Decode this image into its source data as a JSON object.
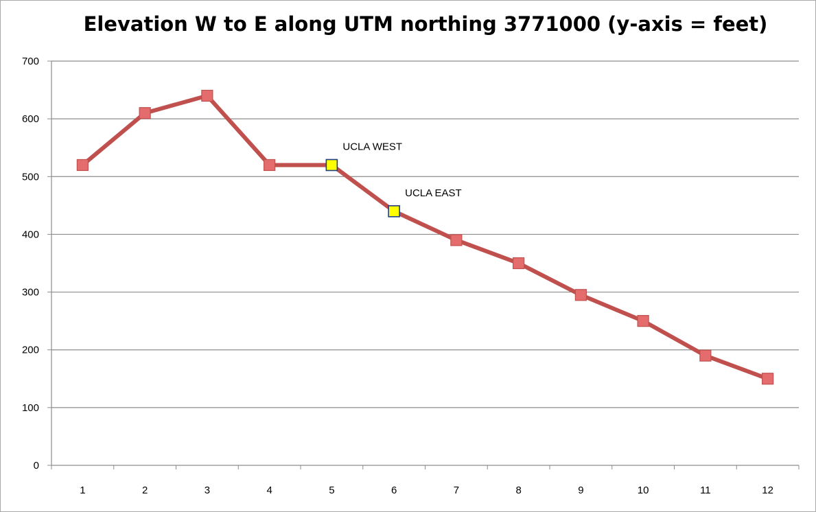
{
  "chart_data": {
    "type": "line",
    "title": "Elevation W to E along UTM northing 3771000 (y-axis = feet)",
    "xlabel": "",
    "ylabel": "",
    "categories": [
      "1",
      "2",
      "3",
      "4",
      "5",
      "6",
      "7",
      "8",
      "9",
      "10",
      "11",
      "12"
    ],
    "values": [
      520,
      610,
      640,
      520,
      520,
      440,
      390,
      350,
      295,
      250,
      190,
      150
    ],
    "ylim": [
      0,
      700
    ],
    "yticks": [
      "0",
      "100",
      "200",
      "300",
      "400",
      "500",
      "600",
      "700"
    ],
    "grid": true,
    "colors": {
      "line": "#c0504d",
      "marker": "#e46c6c",
      "marker_edge": "#c0504d",
      "highlight_marker": "#ffff00",
      "highlight_edge": "#1f3e8a"
    },
    "annotations": [
      {
        "text": "UCLA WEST",
        "category": "5",
        "value": 520
      },
      {
        "text": "UCLA EAST",
        "category": "6",
        "value": 440
      }
    ]
  }
}
